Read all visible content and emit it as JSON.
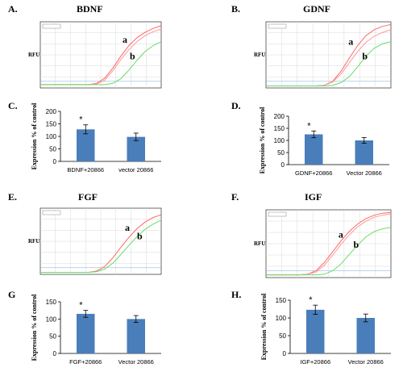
{
  "panels": {
    "A": {
      "letter": "A.",
      "title": "BDNF"
    },
    "B": {
      "letter": "B.",
      "title": "GDNF"
    },
    "C": {
      "letter": "C."
    },
    "D": {
      "letter": "D."
    },
    "E": {
      "letter": "E.",
      "title": "FGF"
    },
    "F": {
      "letter": "F.",
      "title": "IGF"
    },
    "G": {
      "letter": "G"
    },
    "H": {
      "letter": "H."
    }
  },
  "rfu_label": "RFU",
  "chart_data": [
    {
      "id": "C",
      "type": "bar",
      "categories": [
        "BDNF+20866",
        "vector 20866"
      ],
      "values": [
        128,
        98
      ],
      "errors": [
        18,
        15
      ],
      "significance": [
        "*",
        ""
      ],
      "ylabel": "Expression % of control",
      "ylim": [
        0,
        200
      ],
      "yticks": [
        0,
        50,
        100,
        150,
        200
      ],
      "color": "#4a7ebb"
    },
    {
      "id": "D",
      "type": "bar",
      "categories": [
        "GDNF+20866",
        "Vector 20866"
      ],
      "values": [
        125,
        100
      ],
      "errors": [
        14,
        12
      ],
      "significance": [
        "*",
        ""
      ],
      "ylabel": "Expression % of control",
      "ylim": [
        0,
        200
      ],
      "yticks": [
        0,
        50,
        100,
        150,
        200
      ],
      "color": "#4a7ebb"
    },
    {
      "id": "G",
      "type": "bar",
      "categories": [
        "FGF+20866",
        "Vector 20866"
      ],
      "values": [
        115,
        100
      ],
      "errors": [
        10,
        10
      ],
      "significance": [
        "*",
        ""
      ],
      "ylabel": "Expression % of control",
      "ylim": [
        0,
        150
      ],
      "yticks": [
        0,
        50,
        100,
        150
      ],
      "color": "#4a7ebb"
    },
    {
      "id": "H",
      "type": "bar",
      "categories": [
        "IGF+20866",
        "Vector 20866"
      ],
      "values": [
        123,
        100
      ],
      "errors": [
        13,
        11
      ],
      "significance": [
        "*",
        ""
      ],
      "ylabel": "Expression % of control",
      "ylim": [
        0,
        150
      ],
      "yticks": [
        0,
        50,
        100,
        150
      ],
      "color": "#4a7ebb"
    },
    {
      "id": "A",
      "type": "line",
      "ylabel": "RFU",
      "series": [
        {
          "name": "a",
          "color": "#ff6666",
          "values": [
            0.05,
            0.05,
            0.05,
            0.05,
            0.05,
            0.05,
            0.05,
            0.07,
            0.15,
            0.3,
            0.48,
            0.64,
            0.76,
            0.84,
            0.9,
            0.94
          ]
        },
        {
          "name": "a",
          "color": "#ff9999",
          "values": [
            0.05,
            0.05,
            0.05,
            0.05,
            0.05,
            0.05,
            0.05,
            0.06,
            0.12,
            0.26,
            0.43,
            0.58,
            0.7,
            0.79,
            0.85,
            0.89
          ]
        },
        {
          "name": "b",
          "color": "#66dd66",
          "values": [
            0.05,
            0.05,
            0.05,
            0.05,
            0.05,
            0.05,
            0.05,
            0.05,
            0.05,
            0.07,
            0.14,
            0.27,
            0.42,
            0.55,
            0.64,
            0.7
          ]
        }
      ]
    },
    {
      "id": "B",
      "type": "line",
      "ylabel": "RFU",
      "series": [
        {
          "name": "a",
          "color": "#ff6666",
          "values": [
            0.03,
            0.03,
            0.03,
            0.03,
            0.03,
            0.03,
            0.03,
            0.04,
            0.1,
            0.25,
            0.45,
            0.64,
            0.79,
            0.88,
            0.93,
            0.96
          ]
        },
        {
          "name": "a",
          "color": "#ff9999",
          "values": [
            0.03,
            0.03,
            0.03,
            0.03,
            0.03,
            0.03,
            0.03,
            0.04,
            0.09,
            0.21,
            0.38,
            0.55,
            0.69,
            0.78,
            0.84,
            0.88
          ]
        },
        {
          "name": "b",
          "color": "#66dd66",
          "values": [
            0.03,
            0.03,
            0.03,
            0.03,
            0.03,
            0.03,
            0.03,
            0.03,
            0.04,
            0.08,
            0.17,
            0.32,
            0.48,
            0.6,
            0.67,
            0.7
          ]
        }
      ]
    },
    {
      "id": "E",
      "type": "line",
      "ylabel": "RFU",
      "series": [
        {
          "name": "a",
          "color": "#ff6666",
          "values": [
            0.03,
            0.03,
            0.03,
            0.03,
            0.03,
            0.03,
            0.03,
            0.05,
            0.12,
            0.25,
            0.41,
            0.56,
            0.69,
            0.79,
            0.86,
            0.9
          ]
        },
        {
          "name": "b",
          "color": "#66dd66",
          "values": [
            0.03,
            0.03,
            0.03,
            0.03,
            0.03,
            0.03,
            0.03,
            0.04,
            0.08,
            0.17,
            0.3,
            0.44,
            0.57,
            0.68,
            0.76,
            0.82
          ]
        }
      ]
    },
    {
      "id": "F",
      "type": "line",
      "ylabel": "RFU",
      "series": [
        {
          "name": "a",
          "color": "#ff6666",
          "values": [
            0.04,
            0.04,
            0.04,
            0.04,
            0.04,
            0.05,
            0.1,
            0.22,
            0.38,
            0.54,
            0.68,
            0.79,
            0.87,
            0.92,
            0.95,
            0.96
          ]
        },
        {
          "name": "a",
          "color": "#ff9999",
          "values": [
            0.04,
            0.04,
            0.04,
            0.04,
            0.04,
            0.05,
            0.08,
            0.18,
            0.33,
            0.49,
            0.63,
            0.75,
            0.83,
            0.89,
            0.92,
            0.94
          ]
        },
        {
          "name": "b",
          "color": "#66dd66",
          "values": [
            0.04,
            0.04,
            0.04,
            0.04,
            0.04,
            0.04,
            0.04,
            0.05,
            0.1,
            0.2,
            0.34,
            0.48,
            0.6,
            0.68,
            0.72,
            0.74
          ]
        }
      ]
    }
  ]
}
